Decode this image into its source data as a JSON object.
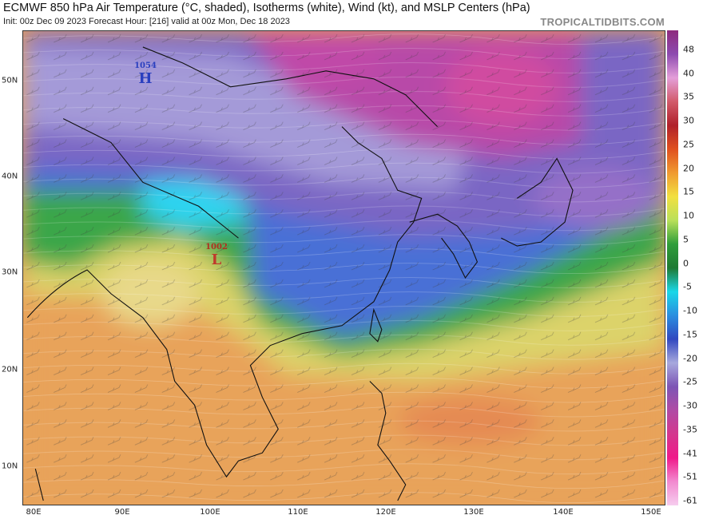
{
  "header": {
    "title": "ECMWF 850 hPa Air Temperature (°C, shaded), Isotherms (white), Wind (kt), and MSLP Centers (hPa)",
    "subtitle": "Init: 00z Dec 09 2023   Forecast Hour: [216]   valid at 00z Mon, Dec 18 2023",
    "brand": "TROPICALTIDBITS.COM"
  },
  "map": {
    "lat_labels": [
      "50N",
      "40N",
      "30N",
      "20N",
      "10N"
    ],
    "lon_labels": [
      "80E",
      "90E",
      "100E",
      "110E",
      "120E",
      "130E",
      "140E",
      "150E"
    ],
    "pressure_centers": [
      {
        "type": "H",
        "value": "1054",
        "color": "#2a3fbf"
      },
      {
        "type": "L",
        "value": "1002",
        "color": "#c0392b"
      }
    ]
  },
  "colorbar": {
    "labels": [
      "48",
      "40",
      "35",
      "30",
      "25",
      "20",
      "15",
      "10",
      "5",
      "0",
      "-5",
      "-10",
      "-15",
      "-20",
      "-25",
      "-30",
      "-35",
      "-41",
      "-51",
      "-61"
    ],
    "colors": [
      "#8e2a7e",
      "#8d4ab0",
      "#e49fd9",
      "#d25a6a",
      "#b0202a",
      "#e0501e",
      "#f09a30",
      "#f2e040",
      "#b9e05a",
      "#2f9e3a",
      "#1e7a33",
      "#1ad7e8",
      "#2a8ee0",
      "#3148c0",
      "#a7a8dd",
      "#7d55b5",
      "#b04aa5",
      "#d4378e",
      "#f01a8a",
      "#f28ad0",
      "#f6cdee"
    ]
  }
}
